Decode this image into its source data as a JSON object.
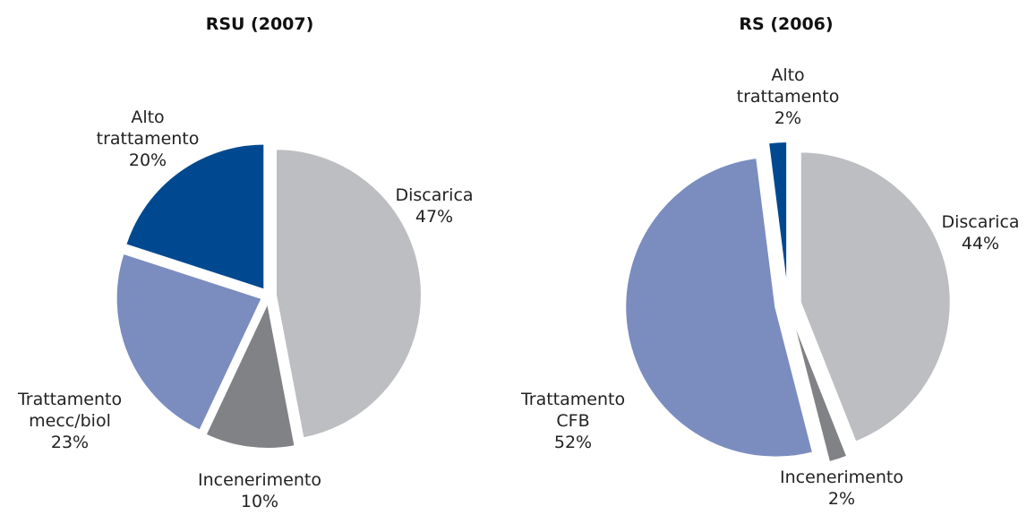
{
  "chart_data": [
    {
      "type": "pie",
      "title": "RSU (2007)",
      "categories": [
        "Discarica",
        "Incenerimento",
        "Trattamento mecc/biol",
        "Alto trattamento"
      ],
      "values": [
        47,
        10,
        23,
        20
      ],
      "value_labels": [
        "47%",
        "10%",
        "23%",
        "20%"
      ],
      "colors": [
        "#bcbec2",
        "#808285",
        "#7b8cbf",
        "#004990"
      ]
    },
    {
      "type": "pie",
      "title": "RS (2006)",
      "categories": [
        "Discarica",
        "Incenerimento",
        "Trattamento CFB",
        "Alto trattamento"
      ],
      "values": [
        44,
        2,
        52,
        2
      ],
      "value_labels": [
        "44%",
        "2%",
        "52%",
        "2%"
      ],
      "colors": [
        "#bcbec2",
        "#808285",
        "#7b8cbf",
        "#004990"
      ]
    }
  ]
}
